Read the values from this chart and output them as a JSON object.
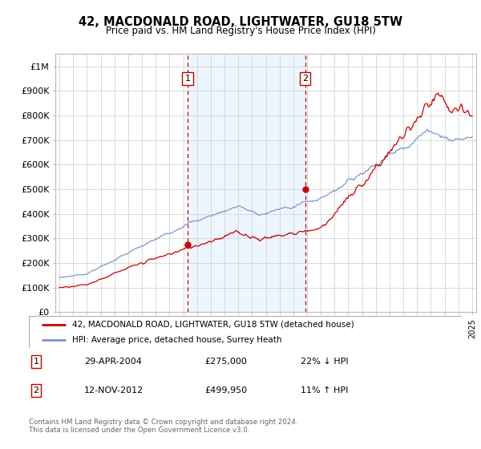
{
  "title": "42, MACDONALD ROAD, LIGHTWATER, GU18 5TW",
  "subtitle": "Price paid vs. HM Land Registry's House Price Index (HPI)",
  "ylabel_ticks": [
    "£0",
    "£100K",
    "£200K",
    "£300K",
    "£400K",
    "£500K",
    "£600K",
    "£700K",
    "£800K",
    "£900K",
    "£1M"
  ],
  "ytick_values": [
    0,
    100000,
    200000,
    300000,
    400000,
    500000,
    600000,
    700000,
    800000,
    900000,
    1000000
  ],
  "ylim": [
    0,
    1050000
  ],
  "xlim_start": 1994.7,
  "xlim_end": 2025.3,
  "transaction1": {
    "date_num": 2004.32,
    "price": 275000,
    "label": "1",
    "date_str": "29-APR-2004",
    "pct": "22%",
    "dir": "↓"
  },
  "transaction2": {
    "date_num": 2012.87,
    "price": 499950,
    "label": "2",
    "date_str": "12-NOV-2012",
    "pct": "11%",
    "dir": "↑"
  },
  "legend_line1": "42, MACDONALD ROAD, LIGHTWATER, GU18 5TW (detached house)",
  "legend_line2": "HPI: Average price, detached house, Surrey Heath",
  "footer": "Contains HM Land Registry data © Crown copyright and database right 2024.\nThis data is licensed under the Open Government Licence v3.0.",
  "line_color_red": "#cc0000",
  "line_color_blue": "#7799cc",
  "shade_color": "#ddeeff",
  "grid_color": "#cccccc",
  "box_color_red": "#cc0000",
  "bg_color": "#ffffff"
}
